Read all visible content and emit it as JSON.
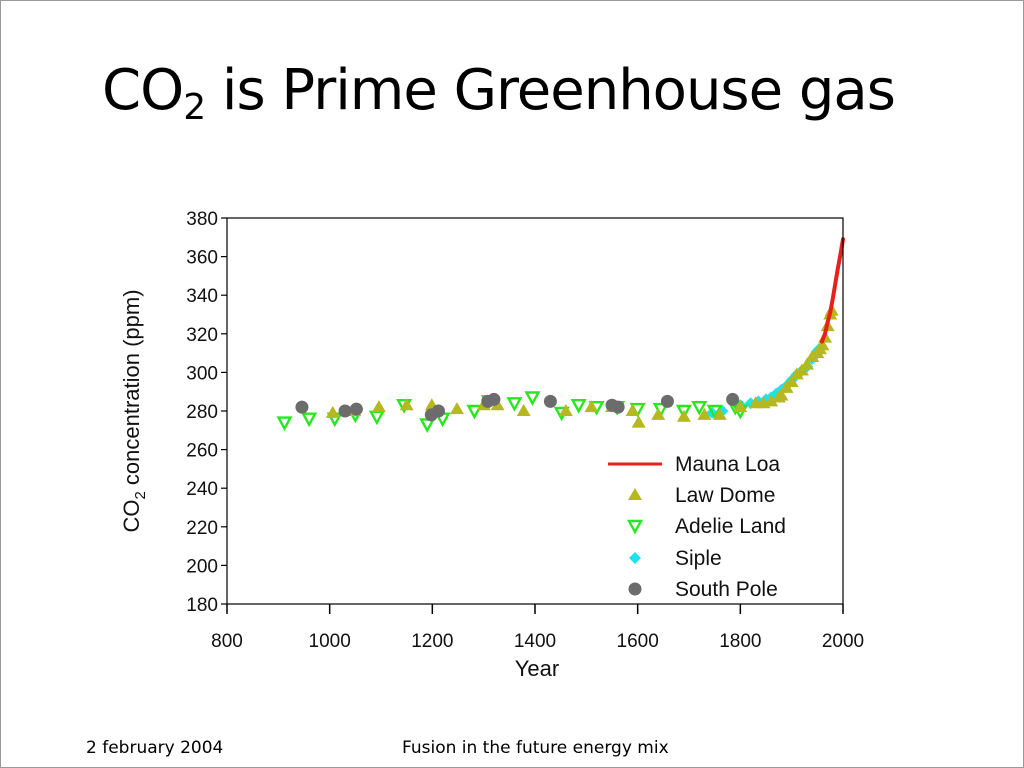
{
  "slide": {
    "title_main": "CO",
    "title_sub": "2",
    "title_rest": " is Prime Greenhouse gas",
    "footer_left": "2 february 2004",
    "footer_center": "Fusion in the future energy mix"
  },
  "colors": {
    "mauna_loa": "#e8201c",
    "law_dome": "#b5b81e",
    "adelie_land": "#27e81f",
    "siple": "#1de3ec",
    "south_pole": "#6c6c6c"
  },
  "chart_data": {
    "type": "scatter",
    "xlabel": "Year",
    "ylabel_main": "CO",
    "ylabel_sub": "2",
    "ylabel_rest": " concentration (ppm)",
    "xlim": [
      800,
      2000
    ],
    "ylim": [
      180,
      380
    ],
    "xticks": [
      "800",
      "1000",
      "1200",
      "1400",
      "1600",
      "1800",
      "2000"
    ],
    "yticks": [
      "180",
      "200",
      "220",
      "240",
      "260",
      "280",
      "300",
      "320",
      "340",
      "360",
      "380"
    ],
    "legend_position": "bottom-right",
    "series": [
      {
        "name": "Mauna Loa",
        "marker": "line",
        "color": "#e8201c",
        "x": [
          1959,
          1965,
          1970,
          1975,
          1980,
          1985,
          1990,
          1995,
          2000
        ],
        "y": [
          316,
          320,
          326,
          331,
          338,
          346,
          354,
          361,
          369
        ]
      },
      {
        "name": "Law Dome",
        "marker": "triangle-up",
        "color": "#b5b81e",
        "x": [
          1006,
          1048,
          1096,
          1150,
          1199,
          1248,
          1300,
          1327,
          1378,
          1460,
          1510,
          1550,
          1590,
          1602,
          1640,
          1690,
          1730,
          1760,
          1800,
          1830,
          1845,
          1860,
          1875,
          1880,
          1890,
          1900,
          1910,
          1920,
          1930,
          1940,
          1950,
          1955,
          1960,
          1965,
          1970,
          1975,
          1978
        ],
        "y": [
          279,
          280,
          282,
          283,
          283,
          281,
          283,
          283,
          280,
          280,
          282,
          282,
          280,
          274,
          278,
          277,
          278,
          278,
          282,
          284,
          284,
          285,
          287,
          288,
          292,
          295,
          299,
          301,
          304,
          308,
          310,
          312,
          314,
          318,
          324,
          330,
          332
        ]
      },
      {
        "name": "Adelie Land",
        "marker": "triangle-down",
        "color": "#27e81f",
        "x": [
          912,
          960,
          1010,
          1050,
          1092,
          1145,
          1190,
          1220,
          1282,
          1310,
          1360,
          1395,
          1452,
          1485,
          1520,
          1560,
          1600,
          1645,
          1690,
          1720,
          1750,
          1790,
          1800
        ],
        "y": [
          274,
          276,
          276,
          278,
          277,
          283,
          273,
          276,
          280,
          285,
          284,
          287,
          279,
          283,
          282,
          282,
          281,
          281,
          280,
          282,
          280,
          282,
          280
        ]
      },
      {
        "name": "Siple",
        "marker": "diamond",
        "color": "#1de3ec",
        "x": [
          1745,
          1765,
          1800,
          1820,
          1835,
          1850,
          1860,
          1870,
          1880,
          1890,
          1900,
          1910,
          1920,
          1930,
          1940,
          1950,
          1953
        ],
        "y": [
          279,
          280,
          283,
          284,
          285,
          286,
          287,
          289,
          291,
          293,
          296,
          299,
          301,
          303,
          307,
          311,
          312
        ]
      },
      {
        "name": "South Pole",
        "marker": "circle",
        "color": "#6c6c6c",
        "x": [
          946,
          1030,
          1052,
          1198,
          1212,
          1308,
          1320,
          1430,
          1550,
          1562,
          1658,
          1785
        ],
        "y": [
          282,
          280,
          281,
          278,
          280,
          285,
          286,
          285,
          283,
          282,
          285,
          286
        ]
      }
    ]
  }
}
